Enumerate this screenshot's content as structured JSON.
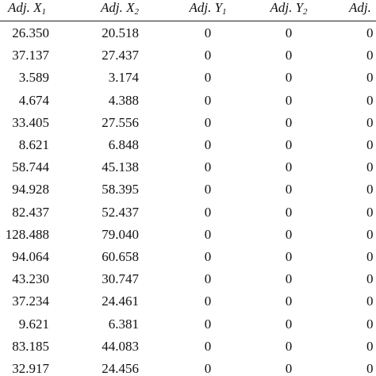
{
  "table": {
    "header": [
      {
        "text": "Adj. X",
        "sub": "1"
      },
      {
        "text": "Adj. X",
        "sub": "2"
      },
      {
        "text": "Adj. Y",
        "sub": "1"
      },
      {
        "text": "Adj. Y",
        "sub": "2"
      },
      {
        "text": "Adj."
      }
    ],
    "rows": [
      [
        "26.350",
        "20.518",
        "0",
        "0",
        "0"
      ],
      [
        "37.137",
        "27.437",
        "0",
        "0",
        "0"
      ],
      [
        "3.589",
        "3.174",
        "0",
        "0",
        "0"
      ],
      [
        "4.674",
        "4.388",
        "0",
        "0",
        "0"
      ],
      [
        "33.405",
        "27.556",
        "0",
        "0",
        "0"
      ],
      [
        "8.621",
        "6.848",
        "0",
        "0",
        "0"
      ],
      [
        "58.744",
        "45.138",
        "0",
        "0",
        "0"
      ],
      [
        "94.928",
        "58.395",
        "0",
        "0",
        "0"
      ],
      [
        "82.437",
        "52.437",
        "0",
        "0",
        "0"
      ],
      [
        "128.488",
        "79.040",
        "0",
        "0",
        "0"
      ],
      [
        "94.064",
        "60.658",
        "0",
        "0",
        "0"
      ],
      [
        "43.230",
        "30.747",
        "0",
        "0",
        "0"
      ],
      [
        "37.234",
        "24.461",
        "0",
        "0",
        "0"
      ],
      [
        "9.621",
        "6.381",
        "0",
        "0",
        "0"
      ],
      [
        "83.185",
        "44.083",
        "0",
        "0",
        "0"
      ],
      [
        "32.917",
        "24.456",
        "0",
        "0",
        "0"
      ]
    ]
  }
}
